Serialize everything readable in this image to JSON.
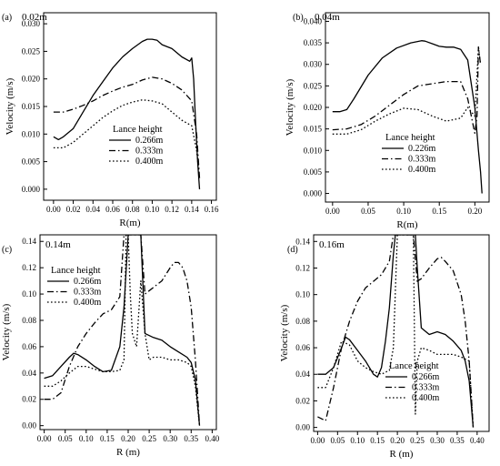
{
  "chart_data": [
    {
      "type": "line",
      "panel_label": "(a)",
      "condition": "0.02m",
      "xlabel": "R(m)",
      "ylabel": "Velocity (m/s)",
      "xlim": [
        -0.01,
        0.165
      ],
      "ylim": [
        -0.002,
        0.032
      ],
      "x_ticks": [
        "0.00",
        "0.02",
        "0.04",
        "0.06",
        "0.08",
        "0.10",
        "0.12",
        "0.14",
        "0.16"
      ],
      "y_ticks": [
        "0.000",
        "0.005",
        "0.010",
        "0.015",
        "0.020",
        "0.025",
        "0.030"
      ],
      "legend_title": "Lance height",
      "legend_position": "middle",
      "series": [
        {
          "name": "0.266m",
          "style": "solid",
          "x": [
            0.0,
            0.005,
            0.01,
            0.02,
            0.03,
            0.04,
            0.05,
            0.06,
            0.07,
            0.08,
            0.09,
            0.095,
            0.1,
            0.105,
            0.11,
            0.12,
            0.13,
            0.138,
            0.14,
            0.142,
            0.144,
            0.146,
            0.148
          ],
          "y": [
            0.0095,
            0.009,
            0.0095,
            0.011,
            0.014,
            0.017,
            0.0195,
            0.022,
            0.024,
            0.0255,
            0.0268,
            0.0272,
            0.0272,
            0.027,
            0.0262,
            0.0255,
            0.024,
            0.0232,
            0.0238,
            0.02,
            0.012,
            0.005,
            0.0
          ]
        },
        {
          "name": "0.333m",
          "style": "dashdot",
          "x": [
            0.0,
            0.01,
            0.02,
            0.03,
            0.04,
            0.05,
            0.06,
            0.07,
            0.08,
            0.09,
            0.1,
            0.11,
            0.12,
            0.13,
            0.14,
            0.145,
            0.148
          ],
          "y": [
            0.014,
            0.014,
            0.0145,
            0.0152,
            0.016,
            0.017,
            0.0178,
            0.0185,
            0.019,
            0.0198,
            0.0203,
            0.02,
            0.0192,
            0.018,
            0.016,
            0.01,
            0.002
          ]
        },
        {
          "name": "0.400m",
          "style": "dotted",
          "x": [
            0.0,
            0.01,
            0.02,
            0.03,
            0.04,
            0.05,
            0.06,
            0.07,
            0.08,
            0.09,
            0.1,
            0.11,
            0.12,
            0.13,
            0.14,
            0.145,
            0.148
          ],
          "y": [
            0.0075,
            0.0075,
            0.0085,
            0.01,
            0.0115,
            0.013,
            0.0142,
            0.0152,
            0.0158,
            0.0162,
            0.016,
            0.0155,
            0.014,
            0.0125,
            0.0115,
            0.007,
            0.002
          ]
        }
      ]
    },
    {
      "type": "line",
      "panel_label": "(b)",
      "condition": "0.04m",
      "xlabel": "R(m)",
      "ylabel": "Velocity (m/s)",
      "xlim": [
        -0.01,
        0.22
      ],
      "ylim": [
        -0.002,
        0.042
      ],
      "x_ticks": [
        "0.00",
        "0.05",
        "0.10",
        "0.15",
        "0.20"
      ],
      "y_ticks": [
        "0.000",
        "0.005",
        "0.010",
        "0.015",
        "0.020",
        "0.025",
        "0.030",
        "0.035",
        "0.040"
      ],
      "legend_title": "Lance height",
      "legend_position": "bottom-left",
      "series": [
        {
          "name": "0.226m",
          "style": "solid",
          "x": [
            0.0,
            0.01,
            0.02,
            0.03,
            0.05,
            0.07,
            0.09,
            0.11,
            0.125,
            0.13,
            0.14,
            0.15,
            0.16,
            0.17,
            0.18,
            0.19,
            0.2,
            0.205,
            0.208,
            0.21
          ],
          "y": [
            0.019,
            0.019,
            0.0195,
            0.022,
            0.0275,
            0.0315,
            0.0338,
            0.035,
            0.0355,
            0.0354,
            0.0348,
            0.0342,
            0.034,
            0.034,
            0.0335,
            0.031,
            0.02,
            0.01,
            0.005,
            0.0
          ]
        },
        {
          "name": "0.333m",
          "style": "dashdot",
          "x": [
            0.0,
            0.02,
            0.04,
            0.06,
            0.08,
            0.1,
            0.12,
            0.14,
            0.16,
            0.18,
            0.19,
            0.2,
            0.203,
            0.205,
            0.208
          ],
          "y": [
            0.0148,
            0.015,
            0.016,
            0.018,
            0.0205,
            0.023,
            0.025,
            0.0255,
            0.026,
            0.026,
            0.022,
            0.014,
            0.018,
            0.034,
            0.03
          ]
        },
        {
          "name": "0.400m",
          "style": "dotted",
          "x": [
            0.0,
            0.02,
            0.04,
            0.06,
            0.08,
            0.1,
            0.12,
            0.14,
            0.16,
            0.18,
            0.19,
            0.2,
            0.205,
            0.208
          ],
          "y": [
            0.0138,
            0.0138,
            0.0148,
            0.0168,
            0.0185,
            0.0198,
            0.0195,
            0.018,
            0.0168,
            0.0175,
            0.02,
            0.018,
            0.034,
            0.03
          ]
        }
      ]
    },
    {
      "type": "line",
      "panel_label": "(c)",
      "condition": "0.14m",
      "xlabel": "R (m)",
      "ylabel": "Velocity (m/s)",
      "xlim": [
        -0.01,
        0.41
      ],
      "ylim": [
        -0.003,
        0.145
      ],
      "x_ticks": [
        "0.00",
        "0.05",
        "0.10",
        "0.15",
        "0.20",
        "0.25",
        "0.30",
        "0.35",
        "0.40"
      ],
      "y_ticks": [
        "0.00",
        "0.02",
        "0.04",
        "0.06",
        "0.08",
        "0.10",
        "0.12",
        "0.14"
      ],
      "legend_title": "Lance height",
      "legend_position": "top-left",
      "series": [
        {
          "name": "0.266m",
          "style": "solid",
          "x": [
            0.0,
            0.02,
            0.04,
            0.06,
            0.07,
            0.08,
            0.1,
            0.12,
            0.14,
            0.16,
            0.18,
            0.19,
            0.2,
            0.205,
            0.21,
            0.215,
            0.22,
            0.225,
            0.23,
            0.24,
            0.26,
            0.28,
            0.3,
            0.32,
            0.34,
            0.35,
            0.36,
            0.37
          ],
          "y": [
            0.036,
            0.038,
            0.045,
            0.052,
            0.055,
            0.054,
            0.05,
            0.045,
            0.041,
            0.042,
            0.06,
            0.09,
            0.145,
            0.145,
            0.145,
            0.145,
            0.145,
            0.145,
            0.145,
            0.07,
            0.067,
            0.065,
            0.06,
            0.056,
            0.052,
            0.048,
            0.035,
            0.0
          ]
        },
        {
          "name": "0.333m",
          "style": "dashdot",
          "x": [
            0.0,
            0.02,
            0.04,
            0.06,
            0.08,
            0.1,
            0.12,
            0.14,
            0.16,
            0.18,
            0.19,
            0.2,
            0.21,
            0.22,
            0.23,
            0.24,
            0.26,
            0.28,
            0.3,
            0.31,
            0.32,
            0.33,
            0.34,
            0.35,
            0.36,
            0.37
          ],
          "y": [
            0.02,
            0.02,
            0.025,
            0.045,
            0.06,
            0.07,
            0.078,
            0.085,
            0.088,
            0.098,
            0.145,
            0.145,
            0.145,
            0.145,
            0.145,
            0.1,
            0.105,
            0.11,
            0.12,
            0.124,
            0.124,
            0.12,
            0.11,
            0.09,
            0.05,
            0.0
          ]
        },
        {
          "name": "0.400m",
          "style": "dotted",
          "x": [
            0.0,
            0.02,
            0.04,
            0.06,
            0.08,
            0.1,
            0.12,
            0.14,
            0.16,
            0.18,
            0.19,
            0.195,
            0.2,
            0.205,
            0.21,
            0.22,
            0.23,
            0.24,
            0.25,
            0.26,
            0.28,
            0.3,
            0.32,
            0.34,
            0.35,
            0.36,
            0.37
          ],
          "y": [
            0.03,
            0.03,
            0.034,
            0.04,
            0.045,
            0.045,
            0.043,
            0.041,
            0.041,
            0.042,
            0.05,
            0.145,
            0.145,
            0.1,
            0.07,
            0.06,
            0.11,
            0.07,
            0.05,
            0.052,
            0.052,
            0.05,
            0.05,
            0.048,
            0.045,
            0.03,
            0.0
          ]
        }
      ]
    },
    {
      "type": "line",
      "panel_label": "(d)",
      "condition": "0.16m",
      "xlabel": "R (m)",
      "ylabel": "Velocity (m/s)",
      "xlim": [
        -0.01,
        0.43
      ],
      "ylim": [
        -0.003,
        0.145
      ],
      "x_ticks": [
        "0.00",
        "0.05",
        "0.10",
        "0.15",
        "0.20",
        "0.25",
        "0.30",
        "0.35",
        "0.40"
      ],
      "y_ticks": [
        "0.00",
        "0.02",
        "0.04",
        "0.06",
        "0.08",
        "0.10",
        "0.12",
        "0.14"
      ],
      "legend_title": "Lance height",
      "legend_position": "bottom-right",
      "series": [
        {
          "name": "0.266m",
          "style": "solid",
          "x": [
            0.0,
            0.02,
            0.04,
            0.06,
            0.07,
            0.08,
            0.1,
            0.12,
            0.14,
            0.15,
            0.16,
            0.17,
            0.18,
            0.19,
            0.195,
            0.2,
            0.22,
            0.24,
            0.245,
            0.25,
            0.26,
            0.28,
            0.3,
            0.32,
            0.34,
            0.36,
            0.37,
            0.38,
            0.39
          ],
          "y": [
            0.04,
            0.04,
            0.045,
            0.06,
            0.068,
            0.066,
            0.058,
            0.05,
            0.04,
            0.038,
            0.045,
            0.065,
            0.09,
            0.13,
            0.145,
            0.145,
            0.145,
            0.145,
            0.145,
            0.12,
            0.075,
            0.07,
            0.072,
            0.07,
            0.065,
            0.058,
            0.05,
            0.035,
            0.0
          ]
        },
        {
          "name": "0.333m",
          "style": "dashdot",
          "x": [
            0.0,
            0.02,
            0.04,
            0.06,
            0.08,
            0.1,
            0.12,
            0.14,
            0.16,
            0.18,
            0.19,
            0.2,
            0.22,
            0.24,
            0.25,
            0.26,
            0.28,
            0.3,
            0.31,
            0.32,
            0.34,
            0.36,
            0.37,
            0.38,
            0.39
          ],
          "y": [
            0.008,
            0.005,
            0.03,
            0.06,
            0.08,
            0.095,
            0.105,
            0.11,
            0.115,
            0.125,
            0.145,
            0.145,
            0.145,
            0.145,
            0.11,
            0.112,
            0.12,
            0.127,
            0.128,
            0.125,
            0.118,
            0.1,
            0.08,
            0.05,
            0.0
          ]
        },
        {
          "name": "0.400m",
          "style": "dotted",
          "x": [
            0.0,
            0.02,
            0.04,
            0.06,
            0.08,
            0.1,
            0.12,
            0.14,
            0.16,
            0.18,
            0.19,
            0.2,
            0.22,
            0.24,
            0.245,
            0.25,
            0.26,
            0.28,
            0.3,
            0.32,
            0.34,
            0.36,
            0.38,
            0.39
          ],
          "y": [
            0.03,
            0.03,
            0.045,
            0.065,
            0.062,
            0.05,
            0.045,
            0.042,
            0.04,
            0.043,
            0.06,
            0.145,
            0.145,
            0.145,
            0.01,
            0.05,
            0.06,
            0.058,
            0.055,
            0.055,
            0.055,
            0.053,
            0.05,
            0.0
          ]
        }
      ]
    }
  ]
}
